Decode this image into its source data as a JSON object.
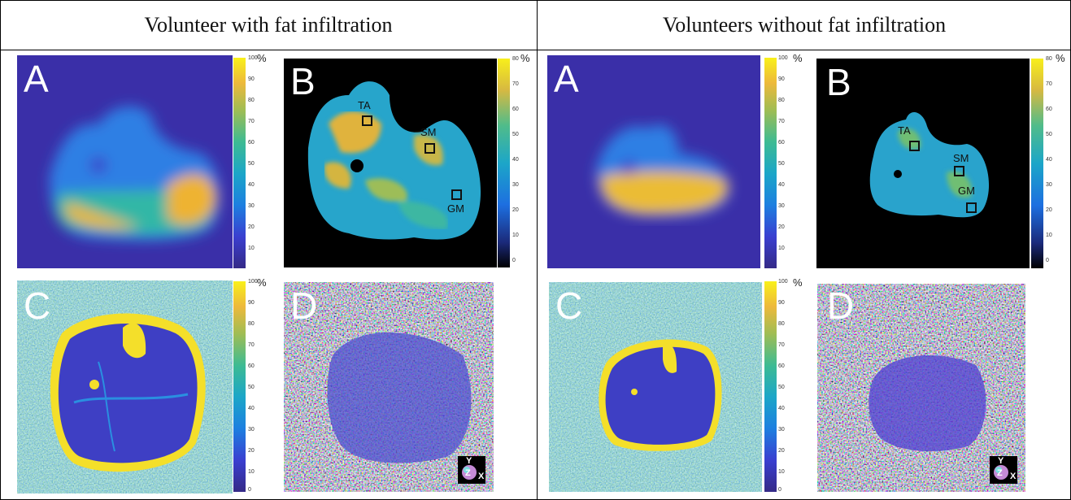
{
  "left_title": "Volunteer with fat infiltration",
  "right_title": "Volunteers without fat infiltration",
  "panel_letters": {
    "a": "A",
    "b": "B",
    "c": "C",
    "d": "D"
  },
  "unit": "%",
  "colorbar_ticks_100": [
    "100",
    "90",
    "80",
    "70",
    "60",
    "50",
    "40",
    "30",
    "20",
    "10",
    "0"
  ],
  "colorbar_ticks_80": [
    "80",
    "70",
    "60",
    "50",
    "40",
    "30",
    "20",
    "10",
    "0"
  ],
  "roi_labels": {
    "ta": "TA",
    "sm": "SM",
    "gm": "GM"
  },
  "axis_labels": {
    "y": "Y",
    "z": "Z",
    "x": "X"
  },
  "colors": {
    "parula_low": "#3b2d8f",
    "parula_mid": "#22b3a8",
    "parula_high": "#f7e03a",
    "black": "#000000"
  }
}
